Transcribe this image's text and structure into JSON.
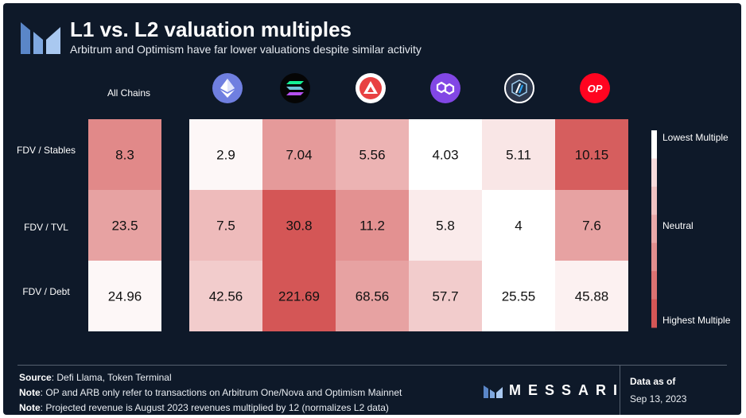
{
  "header": {
    "title": "L1 vs. L2 valuation multiples",
    "subtitle": "Arbitrum and Optimism have far lower valuations despite similar activity"
  },
  "columns": {
    "all_chains_label": "All Chains",
    "chain_icons": [
      {
        "icon": "ethereum-icon",
        "color": "#6f7fe0"
      },
      {
        "icon": "solana-icon",
        "color": "#050505"
      },
      {
        "icon": "avalanche-icon",
        "color": "#ffffff"
      },
      {
        "icon": "polygon-icon",
        "color": "#8247e5"
      },
      {
        "icon": "arbitrum-icon",
        "color": "#2d374b"
      },
      {
        "icon": "optimism-icon",
        "color": "#ff0420",
        "text": "OP"
      }
    ]
  },
  "chart_data": {
    "type": "heatmap",
    "rows": [
      "FDV / Stables",
      "FDV / TVL",
      "FDV / Debt"
    ],
    "all_chains_values": [
      "8.3",
      "23.5",
      "24.96"
    ],
    "chain_values": [
      [
        "2.9",
        "7.04",
        "5.56",
        "4.03",
        "5.11",
        "10.15"
      ],
      [
        "7.5",
        "30.8",
        "11.2",
        "5.8",
        "4",
        "7.6"
      ],
      [
        "42.56",
        "221.69",
        "68.56",
        "57.7",
        "25.55",
        "45.88"
      ]
    ],
    "all_chains_color_levels": [
      0.7,
      0.55,
      0.05
    ],
    "chain_color_levels": [
      [
        0.05,
        0.6,
        0.45,
        0.0,
        0.15,
        0.95
      ],
      [
        0.4,
        1.0,
        0.65,
        0.12,
        0.0,
        0.55
      ],
      [
        0.3,
        1.0,
        0.55,
        0.3,
        0.0,
        0.08
      ]
    ],
    "color_scale": [
      "#ffffff",
      "#f7dcdc",
      "#f0c2c2",
      "#e9a8a8",
      "#e28e8e",
      "#dc7272",
      "#d45656"
    ],
    "legend": {
      "top": "Lowest Multiple",
      "middle": "Neutral",
      "bottom": "Highest Multiple"
    }
  },
  "footer": {
    "source_label": "Source",
    "source_text": ": Defi Llama, Token Terminal",
    "note1_label": "Note",
    "note1_text": ": OP and ARB only refer to transactions on Arbitrum One/Nova and Optimism Mainnet",
    "note2_label": "Note",
    "note2_text": ": Projected revenue is August 2023 revenues multiplied by 12 (normalizes L2 data)",
    "brand": "MESSARI",
    "data_as_of_label": "Data as of",
    "data_as_of_date": "Sep 13, 2023"
  }
}
